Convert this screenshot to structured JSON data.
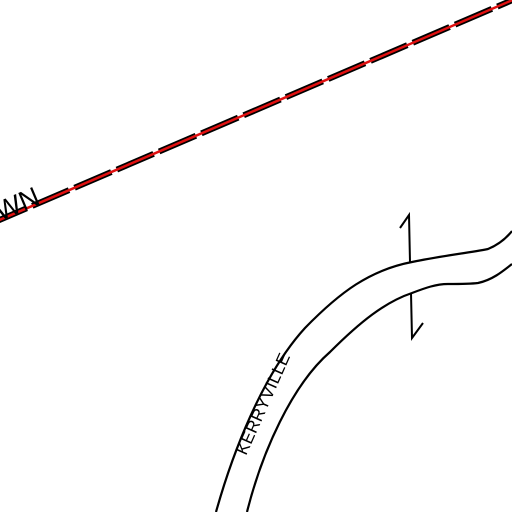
{
  "map": {
    "background_color": "#ffffff",
    "boundary_line": {
      "label": "WN",
      "line_color": "#000000",
      "accent_color": "#e01010"
    },
    "road": {
      "label": "KERRYVILLE",
      "line_color": "#000000"
    },
    "culvert_symbol": {
      "line_color": "#000000"
    }
  }
}
